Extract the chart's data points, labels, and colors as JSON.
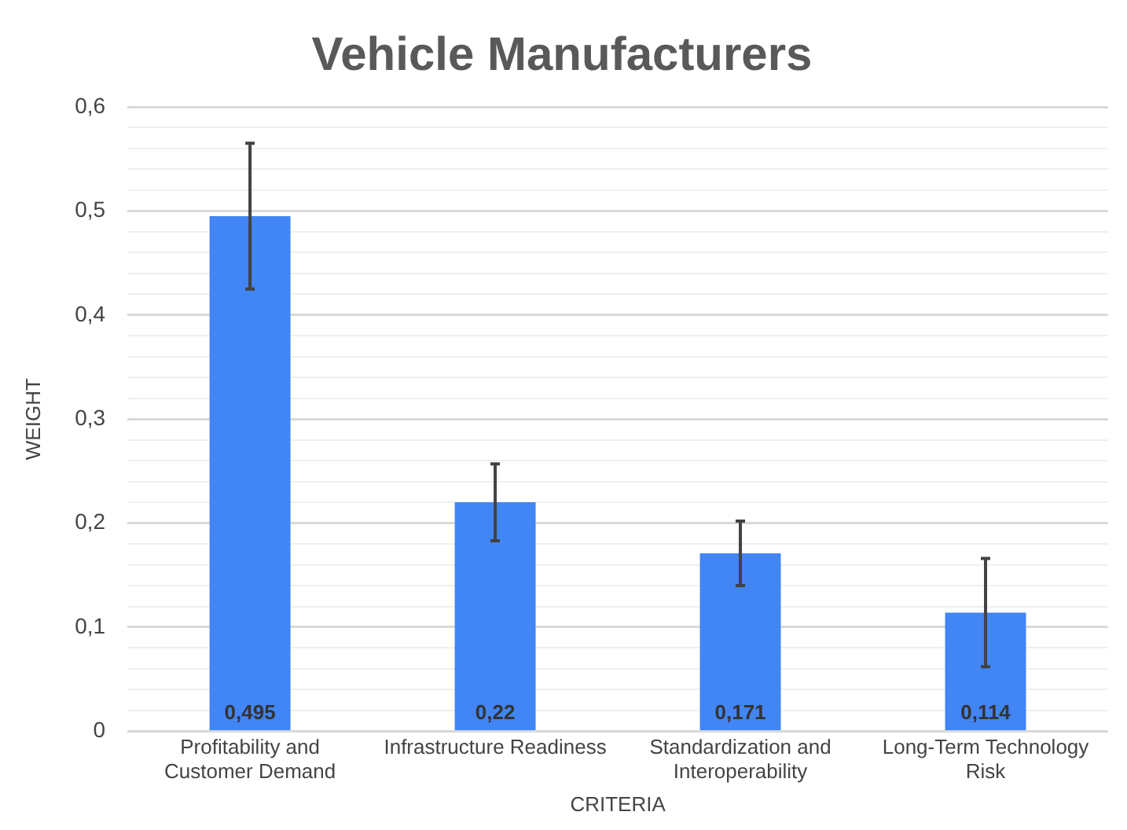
{
  "chart_data": {
    "type": "bar",
    "title": "Vehicle Manufacturers",
    "xlabel": "CRITERIA",
    "ylabel": "WEIGHT",
    "categories": [
      "Profitability and Customer Demand",
      "Infrastructure Readiness",
      "Standardization and Interoperability",
      "Long-Term Technology Risk"
    ],
    "values": [
      0.495,
      0.22,
      0.171,
      0.114
    ],
    "value_labels": [
      "0,495",
      "0,22",
      "0,171",
      "0,114"
    ],
    "errors": [
      0.07,
      0.037,
      0.031,
      0.052
    ],
    "color": "#4285f4",
    "ylim": [
      0,
      0.6
    ],
    "yticks": [
      {
        "value": 0,
        "label": "0"
      },
      {
        "value": 0.02,
        "label": null
      },
      {
        "value": 0.04,
        "label": null
      },
      {
        "value": 0.06,
        "label": null
      },
      {
        "value": 0.08,
        "label": null
      },
      {
        "value": 0.1,
        "label": "0,1"
      },
      {
        "value": 0.12,
        "label": null
      },
      {
        "value": 0.14,
        "label": null
      },
      {
        "value": 0.16,
        "label": null
      },
      {
        "value": 0.18,
        "label": null
      },
      {
        "value": 0.2,
        "label": "0,2"
      },
      {
        "value": 0.22,
        "label": null
      },
      {
        "value": 0.24,
        "label": null
      },
      {
        "value": 0.26,
        "label": null
      },
      {
        "value": 0.28,
        "label": null
      },
      {
        "value": 0.3,
        "label": "0,3"
      },
      {
        "value": 0.32,
        "label": null
      },
      {
        "value": 0.34,
        "label": null
      },
      {
        "value": 0.36,
        "label": null
      },
      {
        "value": 0.38,
        "label": null
      },
      {
        "value": 0.4,
        "label": "0,4"
      },
      {
        "value": 0.42,
        "label": null
      },
      {
        "value": 0.44,
        "label": null
      },
      {
        "value": 0.46,
        "label": null
      },
      {
        "value": 0.48,
        "label": null
      },
      {
        "value": 0.5,
        "label": "0,5"
      },
      {
        "value": 0.52,
        "label": null
      },
      {
        "value": 0.54,
        "label": null
      },
      {
        "value": 0.56,
        "label": null
      },
      {
        "value": 0.58,
        "label": null
      },
      {
        "value": 0.6,
        "label": "0,6"
      }
    ],
    "grid": true,
    "legend": false
  }
}
